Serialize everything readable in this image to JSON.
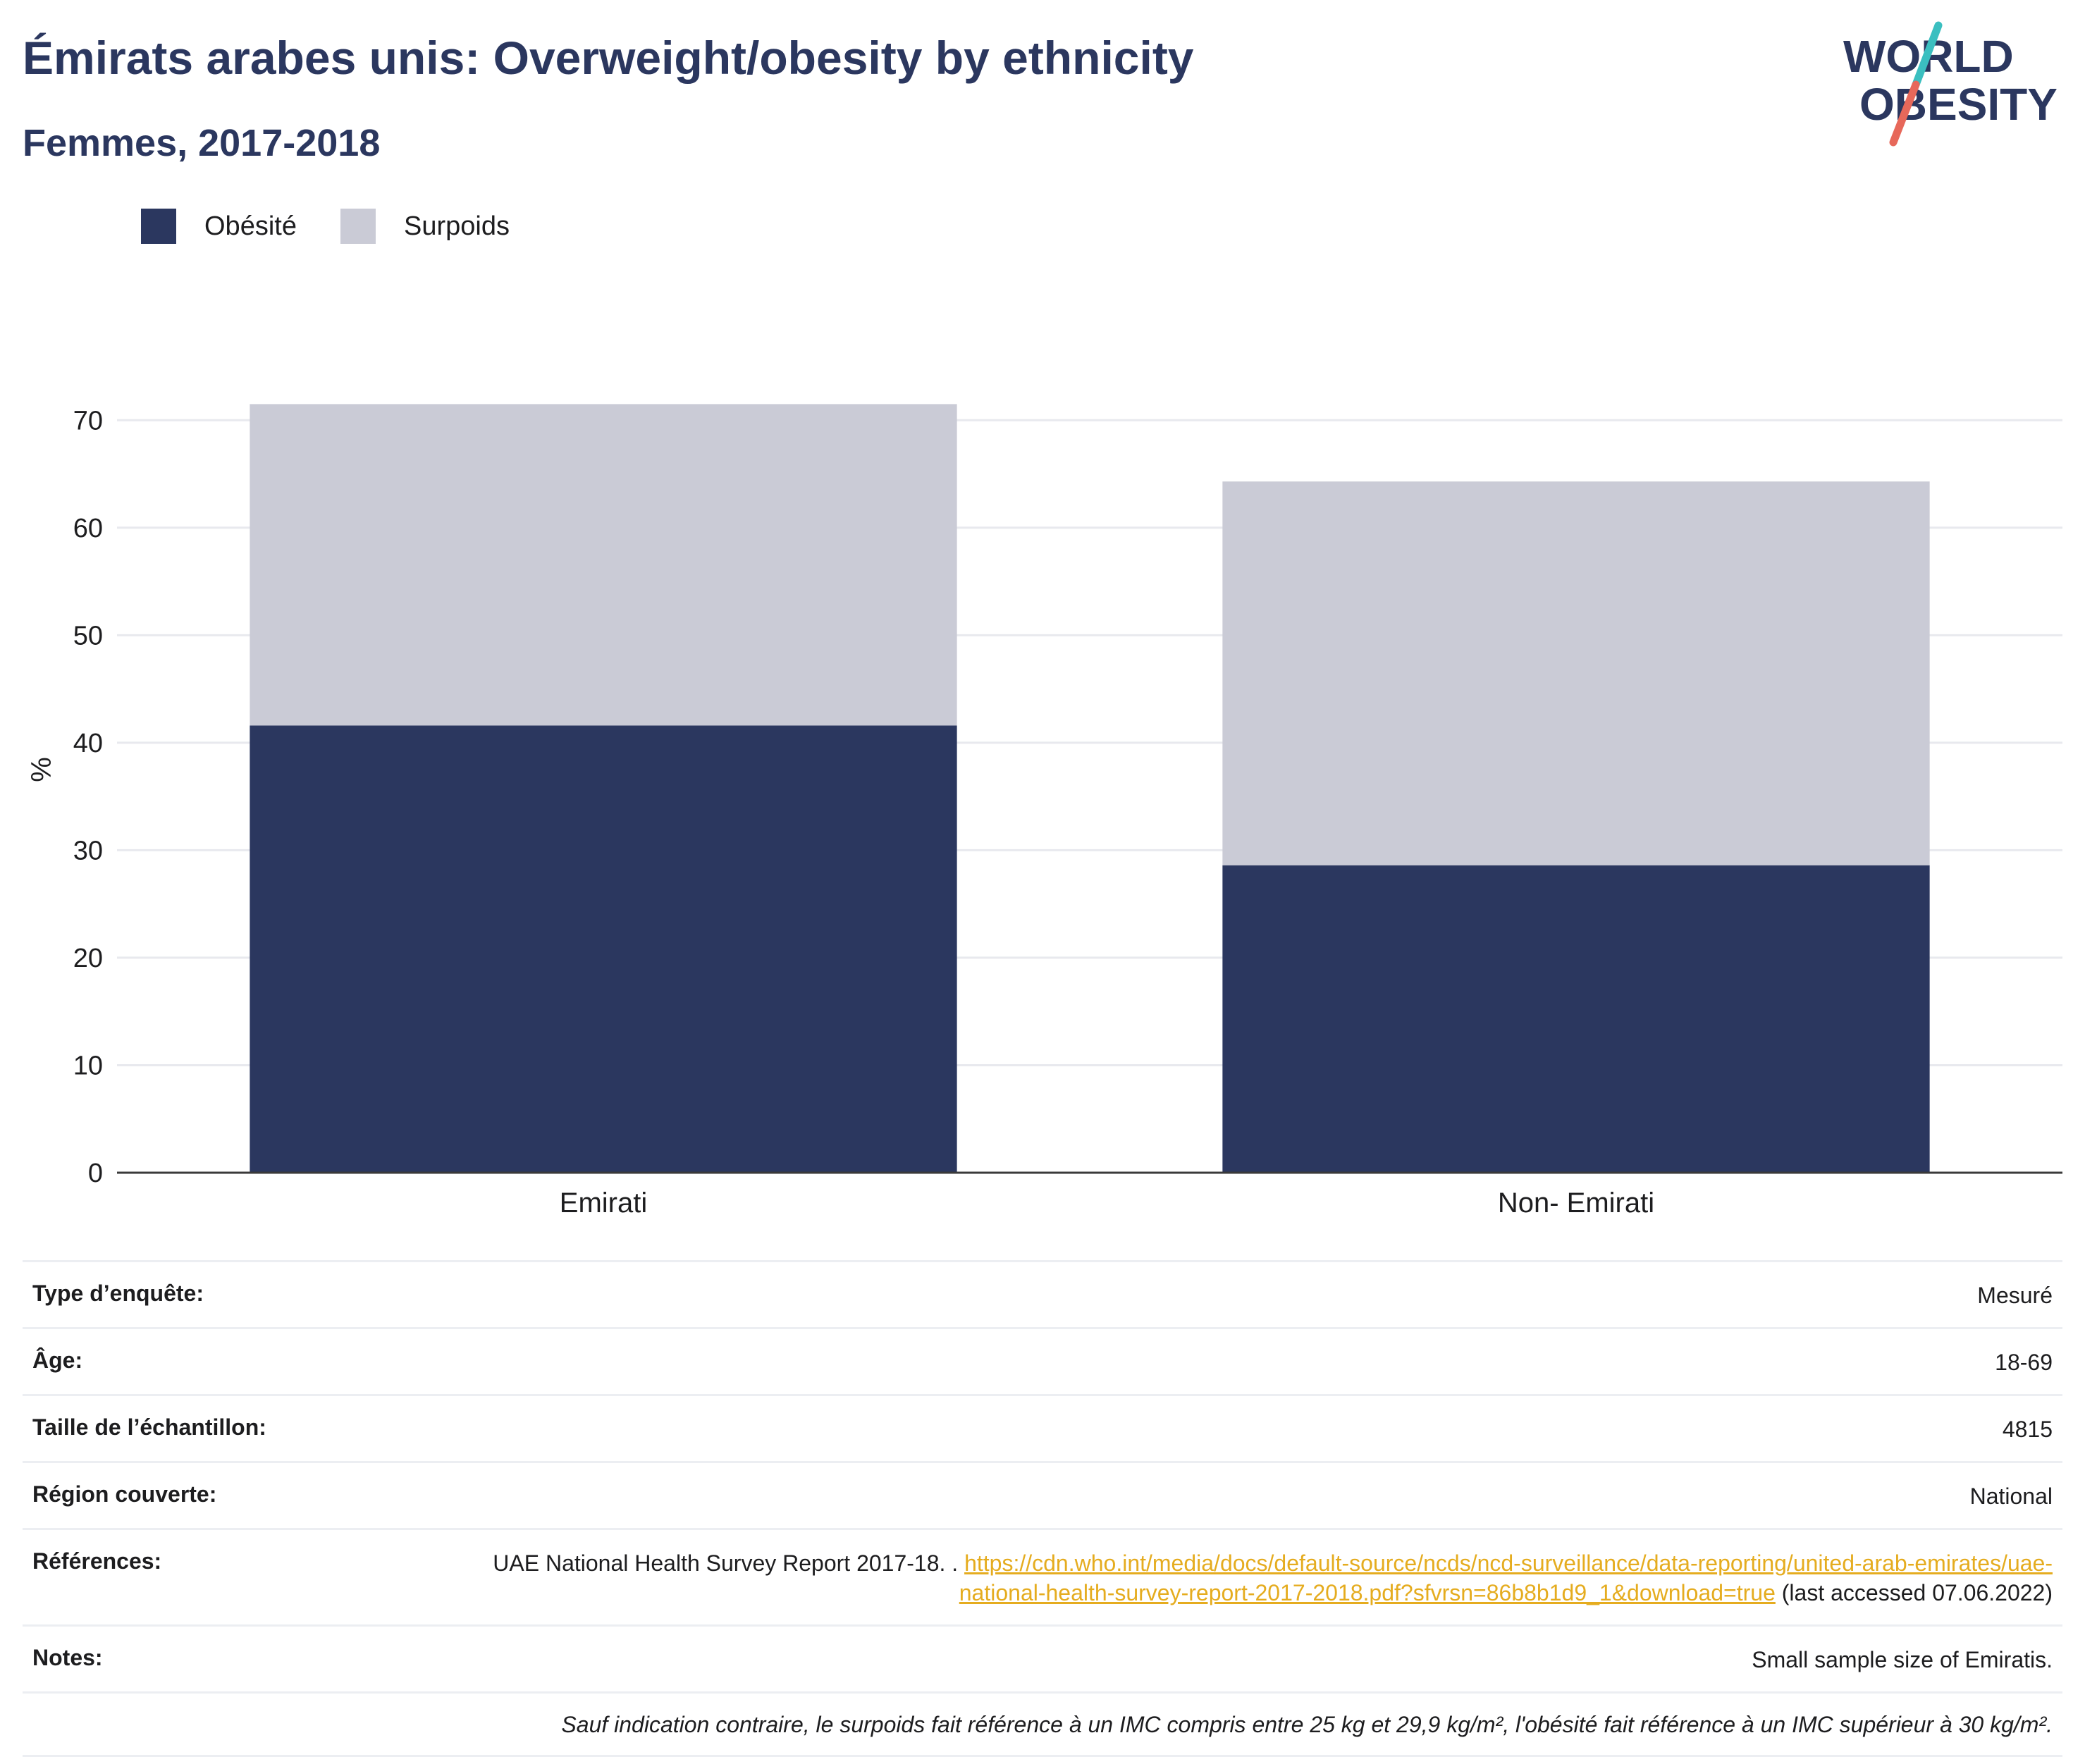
{
  "header": {
    "title": "Émirats arabes unis: Overweight/obesity by ethnicity",
    "subtitle": "Femmes, 2017-2018"
  },
  "logo": {
    "line1": "WORLD",
    "line2": "OBESITY"
  },
  "colors": {
    "obesity": "#2b375f",
    "overweight": "#cacbd6",
    "link": "#e5ac1f",
    "title": "#2b375f"
  },
  "chart_data": {
    "type": "bar",
    "stacked": true,
    "categories": [
      "Emirati",
      "Non- Emirati"
    ],
    "series": [
      {
        "name": "Obésité",
        "values": [
          41.6,
          28.6
        ],
        "color": "#2b375f"
      },
      {
        "name": "Surpoids",
        "values": [
          29.9,
          35.7
        ],
        "color": "#cacbd6"
      }
    ],
    "ylabel": "%",
    "ylim": [
      0,
      75
    ],
    "yticks": [
      0,
      10,
      20,
      30,
      40,
      50,
      60,
      70
    ],
    "grid": true,
    "legend": "top-left"
  },
  "info": {
    "rows": [
      {
        "label": "Type d’enquête:",
        "value": "Mesuré"
      },
      {
        "label": "Âge:",
        "value": "18-69"
      },
      {
        "label": "Taille de l’échantillon:",
        "value": "4815"
      },
      {
        "label": "Région couverte:",
        "value": "National"
      }
    ],
    "references": {
      "label": "Références:",
      "text": "UAE National Health Survey Report 2017-18. .",
      "link": "https://cdn.who.int/media/docs/default-source/ncds/ncd-surveillance/data-reporting/united-arab-emirates/uae-national-health-survey-report-2017-2018.pdf?sfvrsn=86b8b1d9_1&download=true",
      "suffix": "(last accessed 07.06.2022)"
    },
    "notes": {
      "label": "Notes:",
      "value": "Small sample size of Emiratis."
    },
    "footnote": "Sauf indication contraire, le surpoids fait référence à un IMC compris entre 25 kg et 29,9 kg/m², l'obésité fait référence à un IMC supérieur à 30 kg/m²."
  }
}
